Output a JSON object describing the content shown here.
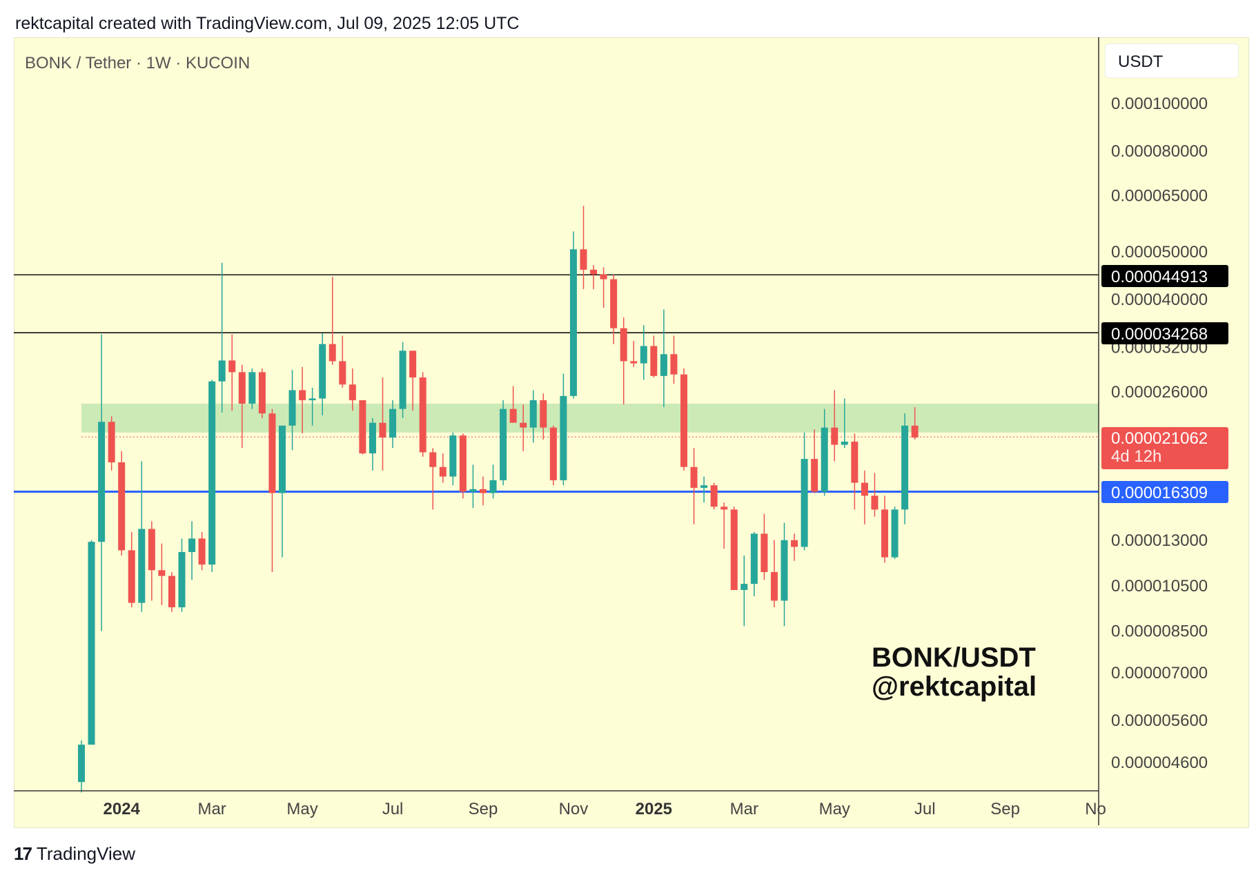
{
  "header": {
    "caption": "rektcapital created with TradingView.com, Jul 09, 2025 12:05 UTC"
  },
  "chart_title": "BONK / Tether · 1W · KUCOIN",
  "currency": "USDT",
  "watermark": {
    "line1": "BONK/USDT",
    "line2": "@rektcapital"
  },
  "footer": {
    "logo_text": "TradingView",
    "logo_mark": "17"
  },
  "colors": {
    "up": "#26a69a",
    "down": "#ef5350",
    "background": "#fdfdd6",
    "zone": "#c3e6b0",
    "support": "#2962ff"
  },
  "price_tags": {
    "resistance_high": "0.000044913",
    "resistance_low": "0.000034268",
    "current_price": "0.000021062",
    "countdown": "4d 12h",
    "support": "0.000016309"
  },
  "chart_data": {
    "type": "candlestick",
    "title": "BONK / Tether · 1W · KUCOIN",
    "scale": "log",
    "y_ticks": [
      0.0001,
      8e-05,
      6.5e-05,
      5e-05,
      4e-05,
      3.2e-05,
      2.6e-05,
      1.3e-05,
      1.05e-05,
      8.5e-06,
      7e-06,
      5.6e-06,
      4.6e-06
    ],
    "y_tick_labels": [
      "0.000100000",
      "0.000080000",
      "0.000065000",
      "0.000050000",
      "0.000040000",
      "0.000032000",
      "0.000026000",
      "0.000013000",
      "0.000010500",
      "0.000008500",
      "0.000007000",
      "0.000005600",
      "0.000004600"
    ],
    "x_ticks": [
      {
        "label": "2024",
        "bold": true,
        "week": 4
      },
      {
        "label": "Mar",
        "week": 13
      },
      {
        "label": "May",
        "week": 22
      },
      {
        "label": "Jul",
        "week": 31
      },
      {
        "label": "Sep",
        "week": 40
      },
      {
        "label": "Nov",
        "week": 49
      },
      {
        "label": "2025",
        "bold": true,
        "week": 57
      },
      {
        "label": "Mar",
        "week": 66
      },
      {
        "label": "May",
        "week": 75
      },
      {
        "label": "Jul",
        "week": 84
      },
      {
        "label": "Sep",
        "week": 92
      },
      {
        "label": "No",
        "week": 101
      }
    ],
    "horizontal_lines": [
      {
        "value": 4.4913e-05,
        "color": "#111111",
        "label": "0.000044913"
      },
      {
        "value": 3.4268e-05,
        "color": "#111111",
        "label": "0.000034268"
      },
      {
        "value": 1.6309e-05,
        "color": "#2962ff",
        "label": "0.000016309"
      }
    ],
    "zone": {
      "low": 2.15e-05,
      "high": 2.46e-05
    },
    "current_price": 2.1062e-05,
    "candles": [
      {
        "o": 4.2e-06,
        "h": 5.1e-06,
        "l": 4e-06,
        "c": 5e-06
      },
      {
        "o": 5e-06,
        "h": 1.3e-05,
        "l": 5e-06,
        "c": 1.29e-05
      },
      {
        "o": 1.29e-05,
        "h": 3.4e-05,
        "l": 8.5e-06,
        "c": 2.26e-05
      },
      {
        "o": 2.26e-05,
        "h": 2.32e-05,
        "l": 1.8e-05,
        "c": 1.87e-05
      },
      {
        "o": 1.87e-05,
        "h": 1.97e-05,
        "l": 1.21e-05,
        "c": 1.24e-05
      },
      {
        "o": 1.24e-05,
        "h": 1.35e-05,
        "l": 9.5e-06,
        "c": 9.7e-06
      },
      {
        "o": 9.7e-06,
        "h": 1.88e-05,
        "l": 9.3e-06,
        "c": 1.37e-05
      },
      {
        "o": 1.37e-05,
        "h": 1.42e-05,
        "l": 9.8e-06,
        "c": 1.13e-05
      },
      {
        "o": 1.13e-05,
        "h": 1.28e-05,
        "l": 9.6e-06,
        "c": 1.1e-05
      },
      {
        "o": 1.1e-05,
        "h": 1.12e-05,
        "l": 9.3e-06,
        "c": 9.5e-06
      },
      {
        "o": 9.5e-06,
        "h": 1.31e-05,
        "l": 9.3e-06,
        "c": 1.23e-05
      },
      {
        "o": 1.23e-05,
        "h": 1.42e-05,
        "l": 1.08e-05,
        "c": 1.31e-05
      },
      {
        "o": 1.31e-05,
        "h": 1.35e-05,
        "l": 1.13e-05,
        "c": 1.16e-05
      },
      {
        "o": 1.16e-05,
        "h": 2.75e-05,
        "l": 1.12e-05,
        "c": 2.73e-05
      },
      {
        "o": 2.73e-05,
        "h": 4.75e-05,
        "l": 2.36e-05,
        "c": 3.01e-05
      },
      {
        "o": 3.01e-05,
        "h": 3.4e-05,
        "l": 2.38e-05,
        "c": 2.85e-05
      },
      {
        "o": 2.85e-05,
        "h": 2.95e-05,
        "l": 2e-05,
        "c": 2.46e-05
      },
      {
        "o": 2.46e-05,
        "h": 2.9e-05,
        "l": 2.4e-05,
        "c": 2.85e-05
      },
      {
        "o": 2.85e-05,
        "h": 2.9e-05,
        "l": 2.3e-05,
        "c": 2.35e-05
      },
      {
        "o": 2.35e-05,
        "h": 2.4e-05,
        "l": 1.12e-05,
        "c": 1.62e-05
      },
      {
        "o": 1.62e-05,
        "h": 2.22e-05,
        "l": 1.2e-05,
        "c": 2.22e-05
      },
      {
        "o": 2.22e-05,
        "h": 2.88e-05,
        "l": 1.98e-05,
        "c": 2.62e-05
      },
      {
        "o": 2.62e-05,
        "h": 2.92e-05,
        "l": 2.14e-05,
        "c": 2.5e-05
      },
      {
        "o": 2.5e-05,
        "h": 2.65e-05,
        "l": 2.22e-05,
        "c": 2.52e-05
      },
      {
        "o": 2.52e-05,
        "h": 3.42e-05,
        "l": 2.33e-05,
        "c": 3.25e-05
      },
      {
        "o": 3.25e-05,
        "h": 4.45e-05,
        "l": 2.95e-05,
        "c": 3e-05
      },
      {
        "o": 3e-05,
        "h": 3.38e-05,
        "l": 2.65e-05,
        "c": 2.69e-05
      },
      {
        "o": 2.69e-05,
        "h": 2.9e-05,
        "l": 2.38e-05,
        "c": 2.5e-05
      },
      {
        "o": 2.5e-05,
        "h": 2.5e-05,
        "l": 1.94e-05,
        "c": 1.95e-05
      },
      {
        "o": 1.95e-05,
        "h": 2.3e-05,
        "l": 1.8e-05,
        "c": 2.25e-05
      },
      {
        "o": 2.25e-05,
        "h": 2.78e-05,
        "l": 1.8e-05,
        "c": 2.1e-05
      },
      {
        "o": 2.1e-05,
        "h": 2.5e-05,
        "l": 2e-05,
        "c": 2.4e-05
      },
      {
        "o": 2.4e-05,
        "h": 3.28e-05,
        "l": 2.3e-05,
        "c": 3.15e-05
      },
      {
        "o": 3.15e-05,
        "h": 3.15e-05,
        "l": 2.38e-05,
        "c": 2.78e-05
      },
      {
        "o": 2.78e-05,
        "h": 2.85e-05,
        "l": 1.92e-05,
        "c": 1.96e-05
      },
      {
        "o": 1.96e-05,
        "h": 2e-05,
        "l": 1.5e-05,
        "c": 1.83e-05
      },
      {
        "o": 1.83e-05,
        "h": 1.95e-05,
        "l": 1.7e-05,
        "c": 1.75e-05
      },
      {
        "o": 1.75e-05,
        "h": 2.15e-05,
        "l": 1.68e-05,
        "c": 2.12e-05
      },
      {
        "o": 2.12e-05,
        "h": 2.14e-05,
        "l": 1.58e-05,
        "c": 1.63e-05
      },
      {
        "o": 1.63e-05,
        "h": 1.85e-05,
        "l": 1.51e-05,
        "c": 1.65e-05
      },
      {
        "o": 1.65e-05,
        "h": 1.75e-05,
        "l": 1.53e-05,
        "c": 1.62e-05
      },
      {
        "o": 1.62e-05,
        "h": 1.85e-05,
        "l": 1.58e-05,
        "c": 1.72e-05
      },
      {
        "o": 1.72e-05,
        "h": 2.5e-05,
        "l": 1.68e-05,
        "c": 2.4e-05
      },
      {
        "o": 2.4e-05,
        "h": 2.67e-05,
        "l": 2.25e-05,
        "c": 2.25e-05
      },
      {
        "o": 2.25e-05,
        "h": 2.45e-05,
        "l": 1.97e-05,
        "c": 2.2e-05
      },
      {
        "o": 2.2e-05,
        "h": 2.62e-05,
        "l": 2.05e-05,
        "c": 2.5e-05
      },
      {
        "o": 2.5e-05,
        "h": 2.58e-05,
        "l": 2.08e-05,
        "c": 2.2e-05
      },
      {
        "o": 2.2e-05,
        "h": 2.22e-05,
        "l": 1.68e-05,
        "c": 1.72e-05
      },
      {
        "o": 1.72e-05,
        "h": 2.83e-05,
        "l": 1.68e-05,
        "c": 2.55e-05
      },
      {
        "o": 2.55e-05,
        "h": 5.5e-05,
        "l": 2.52e-05,
        "c": 5.06e-05
      },
      {
        "o": 5.06e-05,
        "h": 6.2e-05,
        "l": 4.2e-05,
        "c": 4.6e-05
      },
      {
        "o": 4.6e-05,
        "h": 4.7e-05,
        "l": 4.2e-05,
        "c": 4.5e-05
      },
      {
        "o": 4.5e-05,
        "h": 4.65e-05,
        "l": 3.85e-05,
        "c": 4.4e-05
      },
      {
        "o": 4.4e-05,
        "h": 4.5e-05,
        "l": 3.25e-05,
        "c": 3.5e-05
      },
      {
        "o": 3.5e-05,
        "h": 3.68e-05,
        "l": 2.45e-05,
        "c": 3e-05
      },
      {
        "o": 3e-05,
        "h": 3.3e-05,
        "l": 2.92e-05,
        "c": 2.97e-05
      },
      {
        "o": 2.97e-05,
        "h": 3.55e-05,
        "l": 2.75e-05,
        "c": 3.22e-05
      },
      {
        "o": 3.22e-05,
        "h": 3.38e-05,
        "l": 2.78e-05,
        "c": 2.8e-05
      },
      {
        "o": 2.8e-05,
        "h": 3.82e-05,
        "l": 2.42e-05,
        "c": 3.1e-05
      },
      {
        "o": 3.1e-05,
        "h": 3.38e-05,
        "l": 2.7e-05,
        "c": 2.82e-05
      },
      {
        "o": 2.82e-05,
        "h": 2.9e-05,
        "l": 1.8e-05,
        "c": 1.83e-05
      },
      {
        "o": 1.83e-05,
        "h": 2e-05,
        "l": 1.4e-05,
        "c": 1.66e-05
      },
      {
        "o": 1.66e-05,
        "h": 1.75e-05,
        "l": 1.55e-05,
        "c": 1.68e-05
      },
      {
        "o": 1.68e-05,
        "h": 1.7e-05,
        "l": 1.5e-05,
        "c": 1.52e-05
      },
      {
        "o": 1.52e-05,
        "h": 1.55e-05,
        "l": 1.25e-05,
        "c": 1.5e-05
      },
      {
        "o": 1.5e-05,
        "h": 1.52e-05,
        "l": 1.03e-05,
        "c": 1.03e-05
      },
      {
        "o": 1.03e-05,
        "h": 1.21e-05,
        "l": 8.7e-06,
        "c": 1.06e-05
      },
      {
        "o": 1.06e-05,
        "h": 1.35e-05,
        "l": 1e-05,
        "c": 1.34e-05
      },
      {
        "o": 1.34e-05,
        "h": 1.47e-05,
        "l": 1.08e-05,
        "c": 1.12e-05
      },
      {
        "o": 1.12e-05,
        "h": 1.3e-05,
        "l": 9.5e-06,
        "c": 9.8e-06
      },
      {
        "o": 9.8e-06,
        "h": 1.41e-05,
        "l": 8.7e-06,
        "c": 1.3e-05
      },
      {
        "o": 1.3e-05,
        "h": 1.34e-05,
        "l": 1.18e-05,
        "c": 1.26e-05
      },
      {
        "o": 1.26e-05,
        "h": 2.15e-05,
        "l": 1.24e-05,
        "c": 1.9e-05
      },
      {
        "o": 1.9e-05,
        "h": 2.18e-05,
        "l": 1.62e-05,
        "c": 1.63e-05
      },
      {
        "o": 1.63e-05,
        "h": 2.4e-05,
        "l": 1.6e-05,
        "c": 2.2e-05
      },
      {
        "o": 2.2e-05,
        "h": 2.62e-05,
        "l": 1.88e-05,
        "c": 2.03e-05
      },
      {
        "o": 2.03e-05,
        "h": 2.52e-05,
        "l": 2e-05,
        "c": 2.06e-05
      },
      {
        "o": 2.06e-05,
        "h": 2.14e-05,
        "l": 1.5e-05,
        "c": 1.7e-05
      },
      {
        "o": 1.7e-05,
        "h": 1.8e-05,
        "l": 1.4e-05,
        "c": 1.6e-05
      },
      {
        "o": 1.6e-05,
        "h": 1.78e-05,
        "l": 1.45e-05,
        "c": 1.5e-05
      },
      {
        "o": 1.5e-05,
        "h": 1.6e-05,
        "l": 1.17e-05,
        "c": 1.2e-05
      },
      {
        "o": 1.2e-05,
        "h": 1.52e-05,
        "l": 1.19e-05,
        "c": 1.5e-05
      },
      {
        "o": 1.5e-05,
        "h": 2.35e-05,
        "l": 1.4e-05,
        "c": 2.22e-05
      },
      {
        "o": 2.22e-05,
        "h": 2.42e-05,
        "l": 2.08e-05,
        "c": 2.1e-05
      }
    ]
  }
}
